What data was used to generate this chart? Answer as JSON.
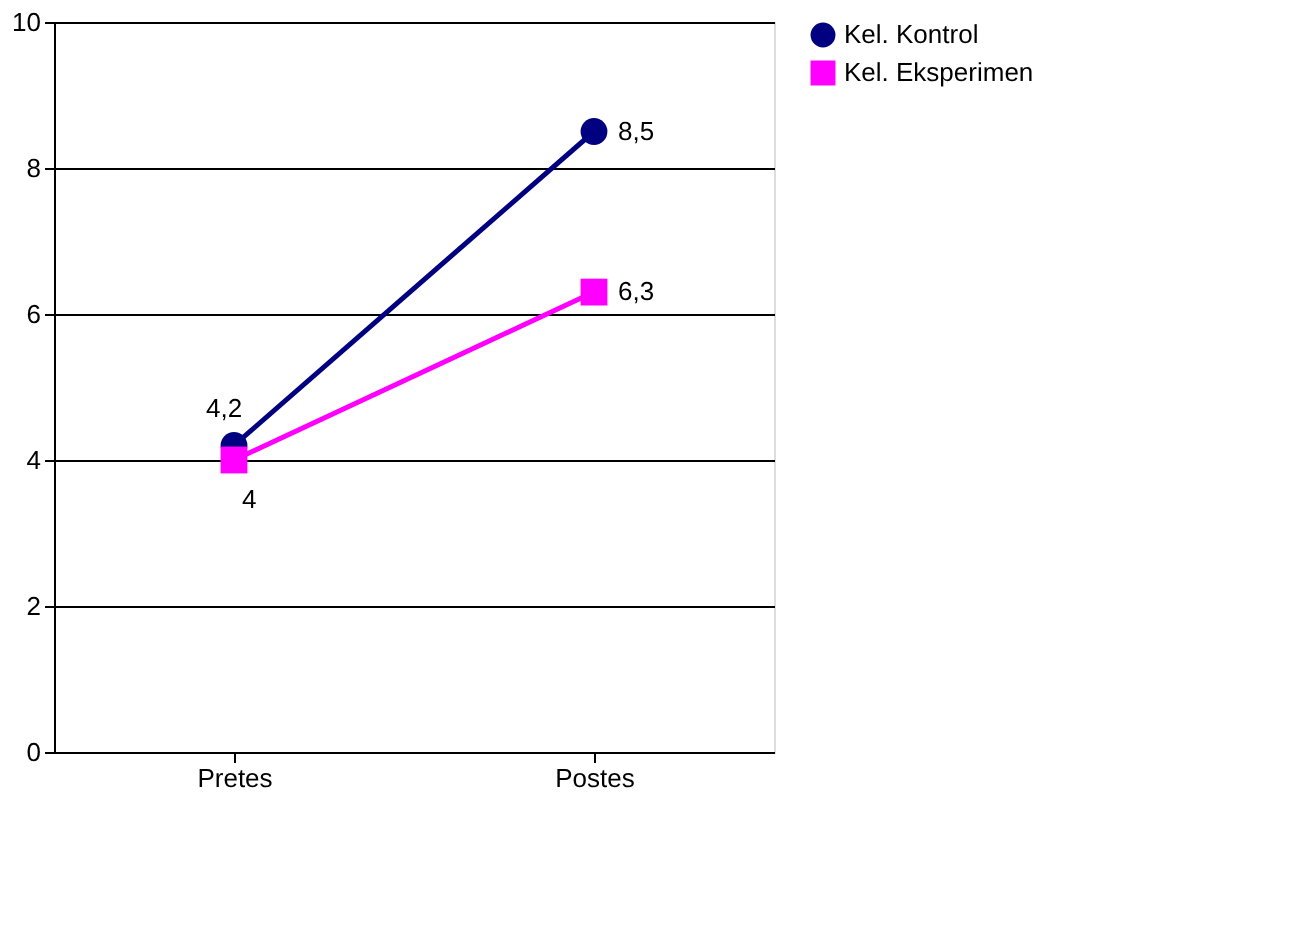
{
  "chart_data": {
    "type": "line",
    "categories": [
      "Pretes",
      "Postes"
    ],
    "series": [
      {
        "name": "Kel. Kontrol",
        "color": "#000080",
        "values": [
          4.2,
          8.5
        ],
        "marker": "circle",
        "value_labels": [
          "4,2",
          "8,5"
        ]
      },
      {
        "name": "Kel. Eksperimen",
        "color": "#ff00ff",
        "values": [
          4,
          6.3
        ],
        "marker": "square",
        "value_labels": [
          "4",
          "6,3"
        ]
      }
    ],
    "ylim": [
      0,
      10
    ],
    "yticks": [
      0,
      2,
      4,
      6,
      8,
      10
    ],
    "grid": "y",
    "legend": "right",
    "line_style": "solid"
  }
}
